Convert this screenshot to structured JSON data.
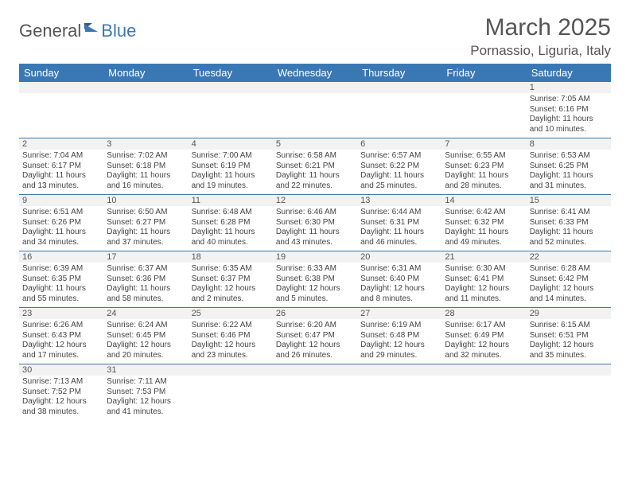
{
  "logo": {
    "part1": "General",
    "part2": "Blue"
  },
  "title": "March 2025",
  "location": "Pornassio, Liguria, Italy",
  "day_headers": [
    "Sunday",
    "Monday",
    "Tuesday",
    "Wednesday",
    "Thursday",
    "Friday",
    "Saturday"
  ],
  "colors": {
    "header_bg": "#3a78b5",
    "header_text": "#ffffff",
    "daynum_bg": "#f2f2f2",
    "border": "#3a78b5",
    "text": "#444444"
  },
  "weeks": [
    {
      "nums": [
        "",
        "",
        "",
        "",
        "",
        "",
        "1"
      ],
      "cells": [
        null,
        null,
        null,
        null,
        null,
        null,
        {
          "sunrise": "Sunrise: 7:05 AM",
          "sunset": "Sunset: 6:16 PM",
          "day1": "Daylight: 11 hours",
          "day2": "and 10 minutes."
        }
      ]
    },
    {
      "nums": [
        "2",
        "3",
        "4",
        "5",
        "6",
        "7",
        "8"
      ],
      "cells": [
        {
          "sunrise": "Sunrise: 7:04 AM",
          "sunset": "Sunset: 6:17 PM",
          "day1": "Daylight: 11 hours",
          "day2": "and 13 minutes."
        },
        {
          "sunrise": "Sunrise: 7:02 AM",
          "sunset": "Sunset: 6:18 PM",
          "day1": "Daylight: 11 hours",
          "day2": "and 16 minutes."
        },
        {
          "sunrise": "Sunrise: 7:00 AM",
          "sunset": "Sunset: 6:19 PM",
          "day1": "Daylight: 11 hours",
          "day2": "and 19 minutes."
        },
        {
          "sunrise": "Sunrise: 6:58 AM",
          "sunset": "Sunset: 6:21 PM",
          "day1": "Daylight: 11 hours",
          "day2": "and 22 minutes."
        },
        {
          "sunrise": "Sunrise: 6:57 AM",
          "sunset": "Sunset: 6:22 PM",
          "day1": "Daylight: 11 hours",
          "day2": "and 25 minutes."
        },
        {
          "sunrise": "Sunrise: 6:55 AM",
          "sunset": "Sunset: 6:23 PM",
          "day1": "Daylight: 11 hours",
          "day2": "and 28 minutes."
        },
        {
          "sunrise": "Sunrise: 6:53 AM",
          "sunset": "Sunset: 6:25 PM",
          "day1": "Daylight: 11 hours",
          "day2": "and 31 minutes."
        }
      ]
    },
    {
      "nums": [
        "9",
        "10",
        "11",
        "12",
        "13",
        "14",
        "15"
      ],
      "cells": [
        {
          "sunrise": "Sunrise: 6:51 AM",
          "sunset": "Sunset: 6:26 PM",
          "day1": "Daylight: 11 hours",
          "day2": "and 34 minutes."
        },
        {
          "sunrise": "Sunrise: 6:50 AM",
          "sunset": "Sunset: 6:27 PM",
          "day1": "Daylight: 11 hours",
          "day2": "and 37 minutes."
        },
        {
          "sunrise": "Sunrise: 6:48 AM",
          "sunset": "Sunset: 6:28 PM",
          "day1": "Daylight: 11 hours",
          "day2": "and 40 minutes."
        },
        {
          "sunrise": "Sunrise: 6:46 AM",
          "sunset": "Sunset: 6:30 PM",
          "day1": "Daylight: 11 hours",
          "day2": "and 43 minutes."
        },
        {
          "sunrise": "Sunrise: 6:44 AM",
          "sunset": "Sunset: 6:31 PM",
          "day1": "Daylight: 11 hours",
          "day2": "and 46 minutes."
        },
        {
          "sunrise": "Sunrise: 6:42 AM",
          "sunset": "Sunset: 6:32 PM",
          "day1": "Daylight: 11 hours",
          "day2": "and 49 minutes."
        },
        {
          "sunrise": "Sunrise: 6:41 AM",
          "sunset": "Sunset: 6:33 PM",
          "day1": "Daylight: 11 hours",
          "day2": "and 52 minutes."
        }
      ]
    },
    {
      "nums": [
        "16",
        "17",
        "18",
        "19",
        "20",
        "21",
        "22"
      ],
      "cells": [
        {
          "sunrise": "Sunrise: 6:39 AM",
          "sunset": "Sunset: 6:35 PM",
          "day1": "Daylight: 11 hours",
          "day2": "and 55 minutes."
        },
        {
          "sunrise": "Sunrise: 6:37 AM",
          "sunset": "Sunset: 6:36 PM",
          "day1": "Daylight: 11 hours",
          "day2": "and 58 minutes."
        },
        {
          "sunrise": "Sunrise: 6:35 AM",
          "sunset": "Sunset: 6:37 PM",
          "day1": "Daylight: 12 hours",
          "day2": "and 2 minutes."
        },
        {
          "sunrise": "Sunrise: 6:33 AM",
          "sunset": "Sunset: 6:38 PM",
          "day1": "Daylight: 12 hours",
          "day2": "and 5 minutes."
        },
        {
          "sunrise": "Sunrise: 6:31 AM",
          "sunset": "Sunset: 6:40 PM",
          "day1": "Daylight: 12 hours",
          "day2": "and 8 minutes."
        },
        {
          "sunrise": "Sunrise: 6:30 AM",
          "sunset": "Sunset: 6:41 PM",
          "day1": "Daylight: 12 hours",
          "day2": "and 11 minutes."
        },
        {
          "sunrise": "Sunrise: 6:28 AM",
          "sunset": "Sunset: 6:42 PM",
          "day1": "Daylight: 12 hours",
          "day2": "and 14 minutes."
        }
      ]
    },
    {
      "nums": [
        "23",
        "24",
        "25",
        "26",
        "27",
        "28",
        "29"
      ],
      "cells": [
        {
          "sunrise": "Sunrise: 6:26 AM",
          "sunset": "Sunset: 6:43 PM",
          "day1": "Daylight: 12 hours",
          "day2": "and 17 minutes."
        },
        {
          "sunrise": "Sunrise: 6:24 AM",
          "sunset": "Sunset: 6:45 PM",
          "day1": "Daylight: 12 hours",
          "day2": "and 20 minutes."
        },
        {
          "sunrise": "Sunrise: 6:22 AM",
          "sunset": "Sunset: 6:46 PM",
          "day1": "Daylight: 12 hours",
          "day2": "and 23 minutes."
        },
        {
          "sunrise": "Sunrise: 6:20 AM",
          "sunset": "Sunset: 6:47 PM",
          "day1": "Daylight: 12 hours",
          "day2": "and 26 minutes."
        },
        {
          "sunrise": "Sunrise: 6:19 AM",
          "sunset": "Sunset: 6:48 PM",
          "day1": "Daylight: 12 hours",
          "day2": "and 29 minutes."
        },
        {
          "sunrise": "Sunrise: 6:17 AM",
          "sunset": "Sunset: 6:49 PM",
          "day1": "Daylight: 12 hours",
          "day2": "and 32 minutes."
        },
        {
          "sunrise": "Sunrise: 6:15 AM",
          "sunset": "Sunset: 6:51 PM",
          "day1": "Daylight: 12 hours",
          "day2": "and 35 minutes."
        }
      ]
    },
    {
      "nums": [
        "30",
        "31",
        "",
        "",
        "",
        "",
        ""
      ],
      "cells": [
        {
          "sunrise": "Sunrise: 7:13 AM",
          "sunset": "Sunset: 7:52 PM",
          "day1": "Daylight: 12 hours",
          "day2": "and 38 minutes."
        },
        {
          "sunrise": "Sunrise: 7:11 AM",
          "sunset": "Sunset: 7:53 PM",
          "day1": "Daylight: 12 hours",
          "day2": "and 41 minutes."
        },
        null,
        null,
        null,
        null,
        null
      ]
    }
  ]
}
